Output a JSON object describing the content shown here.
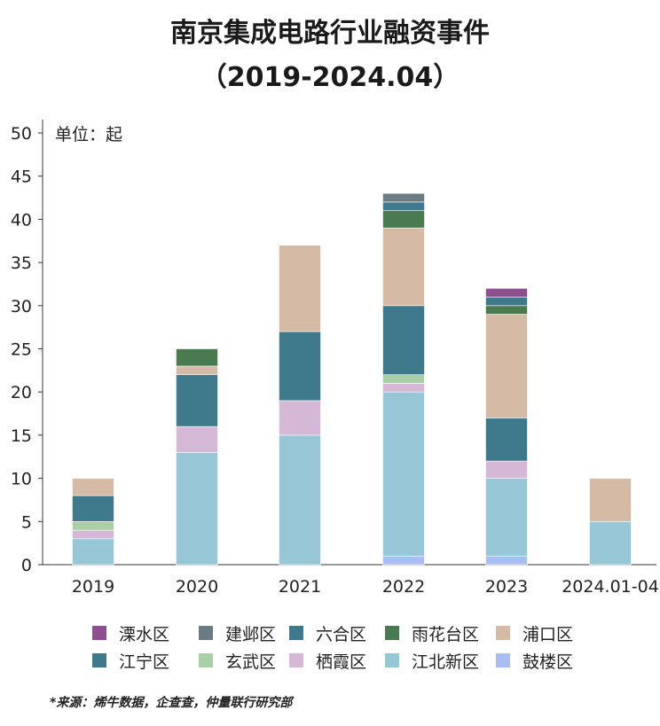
{
  "title_line1": "南京集成电路行业融资事件",
  "title_line2": "（2019-2024.04）",
  "source": "*来源：烯牛数据，企查查，仲量联行研究部",
  "chart_data": {
    "type": "bar",
    "stacked": true,
    "unit_label": "单位：起",
    "categories": [
      "2019",
      "2020",
      "2021",
      "2022",
      "2023",
      "2024.01-04"
    ],
    "ylim": [
      0,
      50
    ],
    "yticks": [
      0,
      5,
      10,
      15,
      20,
      25,
      30,
      35,
      40,
      45,
      50
    ],
    "grid": false,
    "legend_position": "bottom",
    "series": [
      {
        "name": "鼓楼区",
        "color": "#a9bdf0",
        "values": [
          0,
          0,
          0,
          1,
          1,
          0
        ]
      },
      {
        "name": "江北新区",
        "color": "#97c7d6",
        "values": [
          3,
          13,
          15,
          19,
          9,
          5
        ]
      },
      {
        "name": "栖霞区",
        "color": "#d4b8d6",
        "values": [
          1,
          3,
          4,
          1,
          2,
          0
        ]
      },
      {
        "name": "玄武区",
        "color": "#a9cfa6",
        "values": [
          1,
          0,
          0,
          1,
          0,
          0
        ]
      },
      {
        "name": "江宁区",
        "color": "#3f7a8c",
        "values": [
          3,
          6,
          8,
          8,
          5,
          0
        ]
      },
      {
        "name": "浦口区",
        "color": "#d5bba6",
        "values": [
          2,
          1,
          10,
          9,
          12,
          5
        ]
      },
      {
        "name": "雨花台区",
        "color": "#4a7a4f",
        "values": [
          0,
          2,
          0,
          2,
          1,
          0
        ]
      },
      {
        "name": "六合区",
        "color": "#3f7a8c",
        "values": [
          0,
          0,
          0,
          1,
          1,
          0
        ]
      },
      {
        "name": "建邺区",
        "color": "#6b7b82",
        "values": [
          0,
          0,
          0,
          1,
          0,
          0
        ]
      },
      {
        "name": "溧水区",
        "color": "#8e4f8e",
        "values": [
          0,
          0,
          0,
          0,
          1,
          0
        ]
      }
    ],
    "legend_order": [
      "溧水区",
      "建邺区",
      "六合区",
      "雨花台区",
      "浦口区",
      "江宁区",
      "玄武区",
      "栖霞区",
      "江北新区",
      "鼓楼区"
    ]
  }
}
